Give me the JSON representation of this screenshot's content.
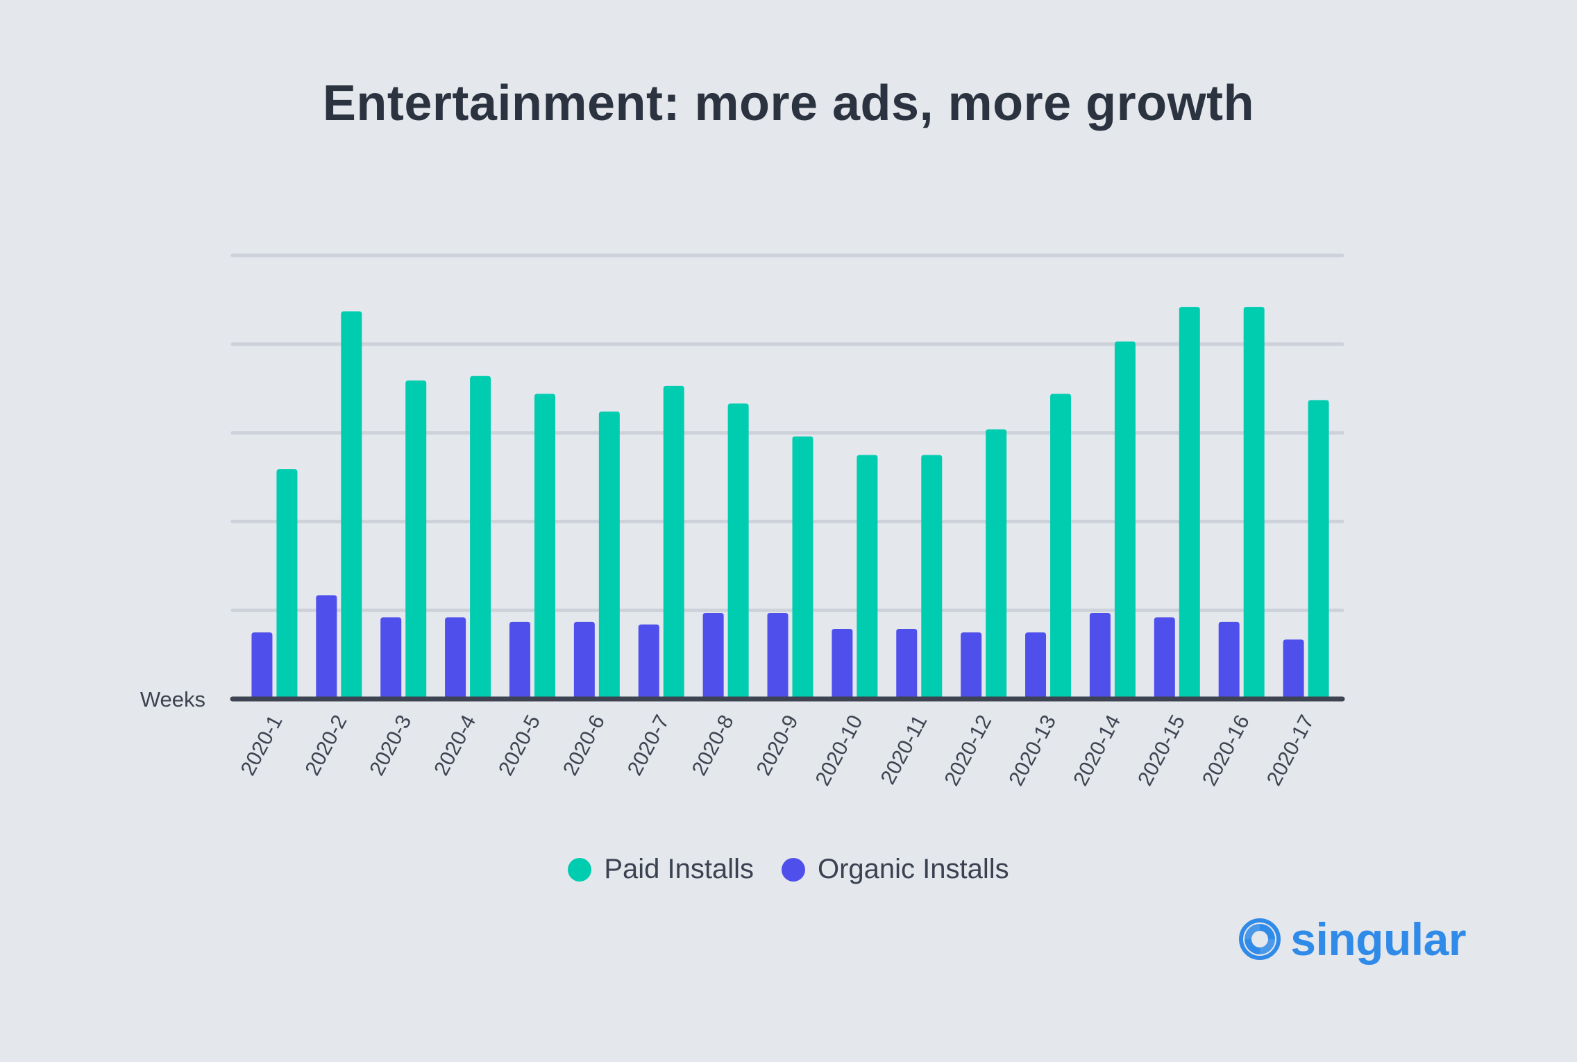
{
  "colors": {
    "background": "#e4e7ec",
    "paid": "#00cdb0",
    "organic": "#4f4fec",
    "grid": "#cdd1da",
    "axis": "#3d4350",
    "text": "#2c3340",
    "brand": "#2f8ae8"
  },
  "legend": {
    "paid_label": "Paid Installs",
    "organic_label": "Organic Installs"
  },
  "brand": {
    "name": "singular",
    "icon": "singular-logo-icon"
  },
  "chart_data": {
    "type": "bar",
    "title": "Entertainment: more ads, more growth",
    "xlabel": "Weeks",
    "ylabel": "",
    "ylim": [
      0,
      5
    ],
    "grid": true,
    "legend_position": "bottom",
    "categories": [
      "2020-1",
      "2020-2",
      "2020-3",
      "2020-4",
      "2020-5",
      "2020-6",
      "2020-7",
      "2020-8",
      "2020-9",
      "2020-10",
      "2020-11",
      "2020-12",
      "2020-13",
      "2020-14",
      "2020-15",
      "2020-16",
      "2020-17"
    ],
    "series": [
      {
        "name": "Organic Installs",
        "color": "#4f4fec",
        "values": [
          0.75,
          1.17,
          0.92,
          0.92,
          0.87,
          0.87,
          0.84,
          0.97,
          0.97,
          0.79,
          0.79,
          0.75,
          0.75,
          0.97,
          0.92,
          0.87,
          0.67
        ]
      },
      {
        "name": "Paid Installs",
        "color": "#00cdb0",
        "values": [
          2.59,
          4.37,
          3.59,
          3.64,
          3.44,
          3.24,
          3.53,
          3.33,
          2.96,
          2.75,
          2.75,
          3.04,
          3.44,
          4.03,
          4.42,
          4.42,
          3.37
        ]
      }
    ]
  }
}
